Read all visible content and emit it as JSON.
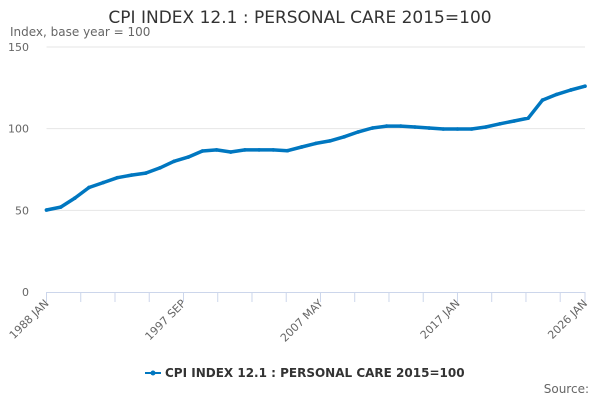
{
  "chart_data": {
    "type": "line",
    "title": "CPI INDEX 12.1 : PERSONAL CARE 2015=100",
    "ylabel": "Index, base year = 100",
    "xlabel": "",
    "ylim": [
      0,
      150
    ],
    "yticks": [
      0,
      50,
      100,
      150
    ],
    "xlim": [
      "1988 JAN",
      "2026 JAN"
    ],
    "xtick_labels": [
      "1988 JAN",
      "1997 SEP",
      "2007 MAY",
      "2017 JAN",
      "2026 JAN"
    ],
    "grid": true,
    "legend": "bottom",
    "color": "#0077c0",
    "series": [
      {
        "name": "CPI INDEX 12.1 : PERSONAL CARE 2015=100",
        "x": [
          "1988 JAN",
          "1989 JAN",
          "1990 JAN",
          "1991 JAN",
          "1992 JAN",
          "1993 JAN",
          "1994 JAN",
          "1995 JAN",
          "1996 JAN",
          "1997 JAN",
          "1998 JAN",
          "1999 JAN",
          "2000 JAN",
          "2001 JAN",
          "2002 JAN",
          "2003 JAN",
          "2004 JAN",
          "2005 JAN",
          "2006 JAN",
          "2007 JAN",
          "2008 JAN",
          "2009 JAN",
          "2010 JAN",
          "2011 JAN",
          "2012 JAN",
          "2013 JAN",
          "2014 JAN",
          "2015 JAN",
          "2016 JAN",
          "2017 JAN",
          "2018 JAN",
          "2019 JAN",
          "2020 JAN",
          "2021 JAN",
          "2022 JAN",
          "2023 JAN",
          "2024 JAN",
          "2025 JAN",
          "2026 JAN"
        ],
        "values": [
          50.2,
          52,
          57.5,
          64,
          67,
          70,
          71.6,
          72.8,
          76,
          80,
          82.6,
          86.3,
          87,
          85.7,
          87,
          87,
          87,
          86.5,
          88.8,
          91,
          92.5,
          95,
          98,
          100.4,
          101.6,
          101.6,
          101,
          100.4,
          99.8,
          99.8,
          99.8,
          101,
          103,
          104.7,
          106.5,
          117.5,
          121,
          123.7,
          126
        ]
      }
    ]
  },
  "source_label": "Source:"
}
